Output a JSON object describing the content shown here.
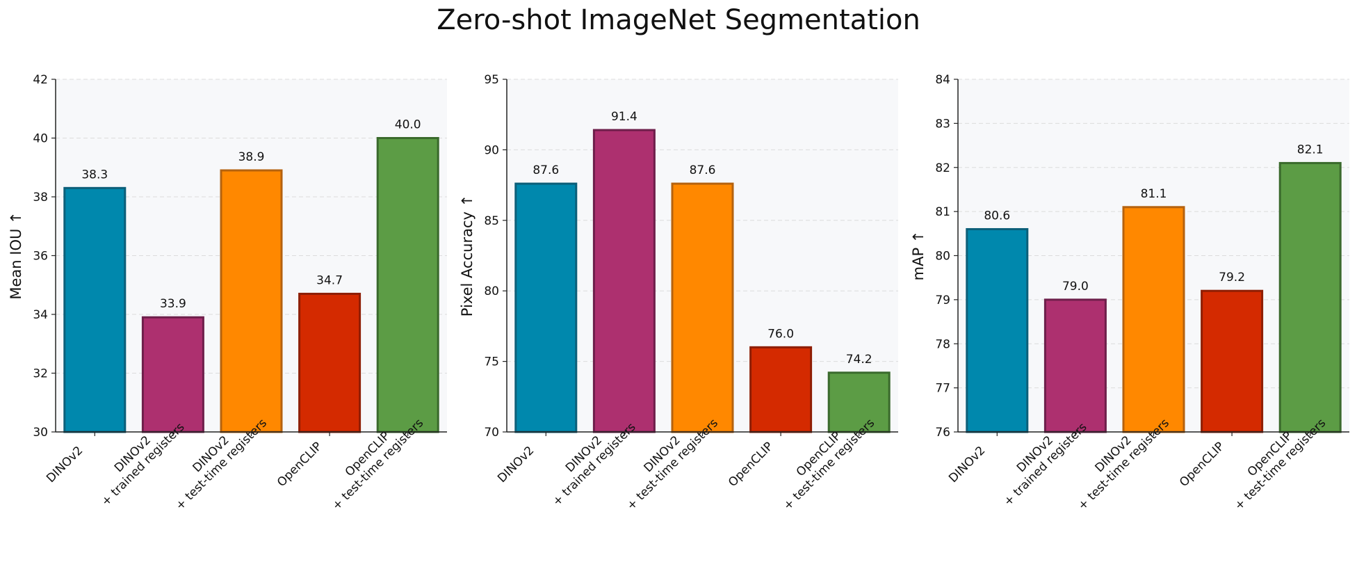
{
  "title": "Zero-shot ImageNet Segmentation",
  "colors": {
    "bars": [
      "#0088ad",
      "#ad306f",
      "#ff8800",
      "#d42a00",
      "#5c9c45"
    ],
    "bar_edges": [
      "#0c5f79",
      "#6e1f4b",
      "#b5620e",
      "#8e1e04",
      "#3a6a2c"
    ],
    "plot_bg": "#f7f8fa",
    "grid": "#dcdcdc"
  },
  "chart_data": [
    {
      "type": "bar",
      "title": "",
      "xlabel": "",
      "ylabel": "Mean IOU ↑",
      "ylim": [
        30,
        42
      ],
      "yticks": [
        30,
        32,
        34,
        36,
        38,
        40,
        42
      ],
      "grid": "horizontal dashed",
      "categories": [
        [
          "DINOv2"
        ],
        [
          "DINOv2",
          "+ trained registers"
        ],
        [
          "DINOv2",
          "+ test-time registers"
        ],
        [
          "OpenCLIP"
        ],
        [
          "OpenCLIP",
          "+ test-time registers"
        ]
      ],
      "values": [
        38.3,
        33.9,
        38.9,
        34.7,
        40.0
      ],
      "value_labels": [
        "38.3",
        "33.9",
        "38.9",
        "34.7",
        "40.0"
      ]
    },
    {
      "type": "bar",
      "title": "",
      "xlabel": "",
      "ylabel": "Pixel Accuracy ↑",
      "ylim": [
        70,
        95
      ],
      "yticks": [
        70,
        75,
        80,
        85,
        90,
        95
      ],
      "grid": "horizontal dashed",
      "categories": [
        [
          "DINOv2"
        ],
        [
          "DINOv2",
          "+ trained registers"
        ],
        [
          "DINOv2",
          "+ test-time registers"
        ],
        [
          "OpenCLIP"
        ],
        [
          "OpenCLIP",
          "+ test-time registers"
        ]
      ],
      "values": [
        87.6,
        91.4,
        87.6,
        76.0,
        74.2
      ],
      "value_labels": [
        "87.6",
        "91.4",
        "87.6",
        "76.0",
        "74.2"
      ]
    },
    {
      "type": "bar",
      "title": "",
      "xlabel": "",
      "ylabel": "mAP ↑",
      "ylim": [
        76,
        84
      ],
      "yticks": [
        76,
        77,
        78,
        79,
        80,
        81,
        82,
        83,
        84
      ],
      "grid": "horizontal dashed",
      "categories": [
        [
          "DINOv2"
        ],
        [
          "DINOv2",
          "+ trained registers"
        ],
        [
          "DINOv2",
          "+ test-time registers"
        ],
        [
          "OpenCLIP"
        ],
        [
          "OpenCLIP",
          "+ test-time registers"
        ]
      ],
      "values": [
        80.6,
        79.0,
        81.1,
        79.2,
        82.1
      ],
      "value_labels": [
        "80.6",
        "79.0",
        "81.1",
        "79.2",
        "82.1"
      ]
    }
  ]
}
